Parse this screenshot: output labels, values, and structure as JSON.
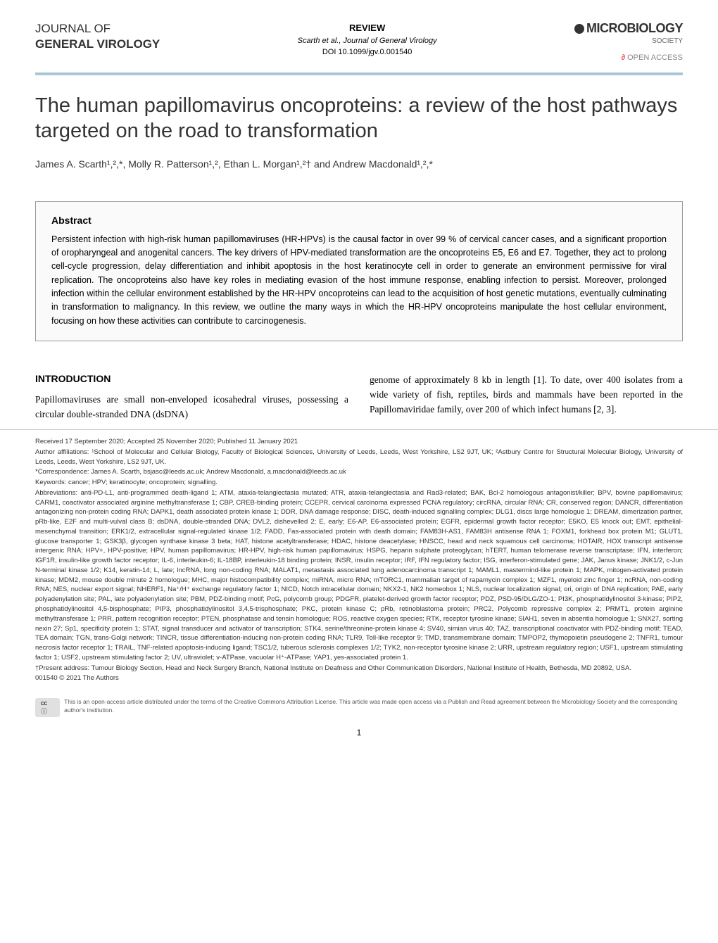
{
  "header": {
    "journal_line1": "JOURNAL OF",
    "journal_line2": "GENERAL VIROLOGY",
    "review_label": "REVIEW",
    "citation": "Scarth et al., Journal of General Virology",
    "doi": "DOI 10.1099/jgv.0.001540",
    "logo_text": "MICROBIOLOGY",
    "society_text": "SOCIETY",
    "access_text": "ACCESS",
    "access_prefix": "OPEN"
  },
  "article": {
    "title": "The human papillomavirus oncoproteins: a review of the host pathways targeted on the road to transformation",
    "authors": "James A. Scarth¹,²,*, Molly R. Patterson¹,², Ethan L. Morgan¹,²† and Andrew Macdonald¹,²,*"
  },
  "abstract": {
    "label": "Abstract",
    "text": "Persistent infection with high-risk human papillomaviruses (HR-HPVs) is the causal factor in over 99 % of cervical cancer cases, and a significant proportion of oropharyngeal and anogenital cancers. The key drivers of HPV-mediated transformation are the oncoproteins E5, E6 and E7. Together, they act to prolong cell-cycle progression, delay differentiation and inhibit apoptosis in the host keratinocyte cell in order to generate an environment permissive for viral replication. The oncoproteins also have key roles in mediating evasion of the host immune response, enabling infection to persist. Moreover, prolonged infection within the cellular environment established by the HR-HPV oncoproteins can lead to the acquisition of host genetic mutations, eventually culminating in transformation to malignancy. In this review, we outline the many ways in which the HR-HPV oncoproteins manipulate the host cellular environment, focusing on how these activities can contribute to carcinogenesis."
  },
  "introduction": {
    "heading": "INTRODUCTION",
    "col1_text": "Papillomaviruses are small non-enveloped icosahedral viruses, possessing a circular double-stranded DNA (dsDNA)",
    "col2_text": "genome of approximately 8 kb in length [1]. To date, over 400 isolates from a wide variety of fish, reptiles, birds and mammals have been reported in the Papillomaviridae family, over 200 of which infect humans [2, 3]."
  },
  "footnotes": {
    "received": "Received 17 September 2020; Accepted 25 November 2020; Published 11 January 2021",
    "affiliations": "Author affiliations: ¹School of Molecular and Cellular Biology, Faculty of Biological Sciences, University of Leeds, Leeds, West Yorkshire, LS2 9JT, UK; ²Astbury Centre for Structural Molecular Biology, University of Leeds, Leeds, West Yorkshire, LS2 9JT, UK.",
    "correspondence": "*Correspondence: James A. Scarth, bsjasc@leeds.ac.uk; Andrew Macdonald, a.macdonald@leeds.ac.uk",
    "keywords": "Keywords: cancer; HPV; keratinocyte; oncoprotein; signalling.",
    "abbreviations": "Abbreviations: anti-PD-L1, anti-programmed death-ligand 1; ATM, ataxia-telangiectasia mutated; ATR, ataxia-telangiectasia and Rad3-related; BAK, Bcl-2 homologous antagonist/killer; BPV, bovine papillomavirus; CARM1, coactivator associated arginine methyltransferase 1; CBP, CREB-binding protein; CCEPR, cervical carcinoma expressed PCNA regulatory; circRNA, circular RNA; CR, conserved region; DANCR, differentiation antagonizing non-protein coding RNA; DAPK1, death associated protein kinase 1; DDR, DNA damage response; DISC, death-induced signalling complex; DLG1, discs large homologue 1; DREAM, dimerization partner, pRb-like, E2F and multi-vulval class B; dsDNA, double-stranded DNA; DVL2, dishevelled 2; E, early; E6-AP, E6-associated protein; EGFR, epidermal growth factor receptor; E5KO, E5 knock out; EMT, epithelial-mesenchymal transition; ERK1/2, extracellular signal-regulated kinase 1/2; FADD, Fas-associated protein with death domain; FAM83H-AS1, FAM83H antisense RNA 1; FOXM1, forkhead box protein M1; GLUT1, glucose transporter 1; GSK3β, glycogen synthase kinase 3 beta; HAT, histone acetyltransferase; HDAC, histone deacetylase; HNSCC, head and neck squamous cell carcinoma; HOTAIR, HOX transcript antisense intergenic RNA; HPV+, HPV-positive; HPV, human papillomavirus; HR-HPV, high-risk human papillomavirus; HSPG, heparin sulphate proteoglycan; hTERT, human telomerase reverse transcriptase; IFN, interferon; IGF1R, insulin-like growth factor receptor; IL-6, interleukin-6; IL-18BP, interleukin-18 binding protein; INSR, insulin receptor; IRF, IFN regulatory factor; ISG, interferon-stimulated gene; JAK, Janus kinase; JNK1/2, c-Jun N-terminal kinase 1/2; K14, keratin-14; L, late; lncRNA, long non-coding RNA; MALAT1, metastasis associated lung adenocarcinoma transcript 1; MAML1, mastermind-like protein 1; MAPK, mitogen-activated protein kinase; MDM2, mouse double minute 2 homologue; MHC, major histocompatibility complex; miRNA, micro RNA; mTORC1, mammalian target of rapamycin complex 1; MZF1, myeloid zinc finger 1; ncRNA, non-coding RNA; NES, nuclear export signal; NHERF1, Na⁺/H⁺ exchange regulatory factor 1; NICD, Notch intracellular domain; NKX2-1, NK2 homeobox 1; NLS, nuclear localization signal; ori, origin of DNA replication; PAE, early polyadenylation site; PAL, late polyadenylation site; PBM, PDZ-binding motif; PcG, polycomb group; PDGFR, platelet-derived growth factor receptor; PDZ, PSD-95/DLG/ZO-1; PI3K, phosphatidylinositol 3-kinase; PIP2, phosphatidylinositol 4,5-bisphosphate; PIP3, phosphatidylinositol 3,4,5-trisphosphate; PKC, protein kinase C; pRb, retinoblastoma protein; PRC2, Polycomb repressive complex 2; PRMT1, protein arginine methyltransferase 1; PRR, pattern recognition receptor; PTEN, phosphatase and tensin homologue; ROS, reactive oxygen species; RTK, receptor tyrosine kinase; SIAH1, seven in absentia homologue 1; SNX27, sorting nexin 27; Sp1, specificity protein 1; STAT, signal transducer and activator of transcription; STK4, serine/threonine-protein kinase 4; SV40, simian virus 40; TAZ, transcriptional coactivator with PDZ-binding motif; TEAD, TEA domain; TGN, trans-Golgi network; TINCR, tissue differentiation-inducing non-protein coding RNA; TLR9, Toll-like receptor 9; TMD, transmembrane domain; TMPOP2, thymopoietin pseudogene 2; TNFR1, tumour necrosis factor receptor 1; TRAIL, TNF-related apoptosis-inducing ligand; TSC1/2, tuberous sclerosis complexes 1/2; TYK2, non-receptor tyrosine kinase 2; URR, upstream regulatory region; USF1, upstream stimulating factor 1; USF2, upstream stimulating factor 2; UV, ultraviolet; v-ATPase, vacuolar H⁺-ATPase; YAP1, yes-associated protein 1.",
    "present_address": "†Present address: Tumour Biology Section, Head and Neck Surgery Branch, National Institute on Deafness and Other Communication Disorders, National Institute of Health, Bethesda, MD 20892, USA.",
    "copyright": "001540 © 2021 The Authors"
  },
  "license": {
    "badge": "cc ⓘ",
    "text": "This is an open-access article distributed under the terms of the Creative Commons Attribution License. This article was made open access via a Publish and Read agreement between the Microbiology Society and the corresponding author's institution."
  },
  "page_number": "1",
  "colors": {
    "divider": "#a8c8d8",
    "text": "#333333",
    "border": "#999999",
    "abstract_bg": "#fafafa"
  }
}
